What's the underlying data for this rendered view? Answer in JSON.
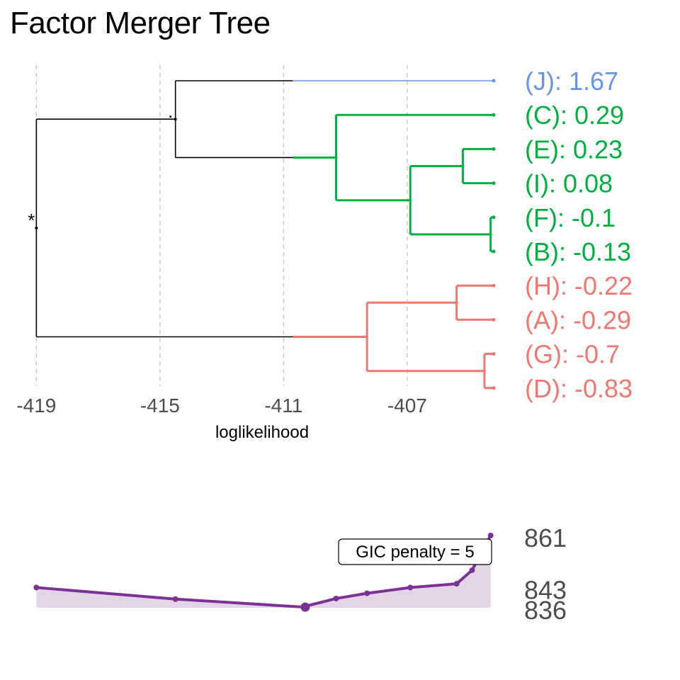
{
  "title": "Factor Merger Tree",
  "colors": {
    "black": "#000000",
    "blue": "#6495ED",
    "green": "#00B140",
    "red": "#F07870",
    "purple": "#7B3294",
    "purple_fill": "#E4D4E8",
    "grid": "#C8C8C8",
    "axis_text": "#4D4D4D"
  },
  "chart_data": [
    {
      "type": "dendrogram",
      "xlabel": "loglikelihood",
      "xlim": [
        -419.1,
        -404.2
      ],
      "x_ticks": [
        -419,
        -415,
        -411,
        -407
      ],
      "x_tick_labels": [
        "-419",
        "-415",
        "-411",
        "-407"
      ],
      "grid": true,
      "leaf_x": -404.2,
      "leaves": [
        {
          "id": "J",
          "label": "(J): 1.67",
          "color": "blue"
        },
        {
          "id": "C",
          "label": "(C): 0.29",
          "color": "green"
        },
        {
          "id": "E",
          "label": "(E): 0.23",
          "color": "green"
        },
        {
          "id": "I",
          "label": "(I): 0.08",
          "color": "green"
        },
        {
          "id": "F",
          "label": "(F): -0.1",
          "color": "green"
        },
        {
          "id": "B",
          "label": "(B): -0.13",
          "color": "green"
        },
        {
          "id": "H",
          "label": "(H): -0.22",
          "color": "red"
        },
        {
          "id": "A",
          "label": "(A): -0.29",
          "color": "red"
        },
        {
          "id": "G",
          "label": "(G): -0.7",
          "color": "red"
        },
        {
          "id": "D",
          "label": "(D): -0.83",
          "color": "red"
        }
      ],
      "merges": [
        {
          "id": "FB",
          "children": [
            "F",
            "B"
          ],
          "x": -404.3,
          "color": "green"
        },
        {
          "id": "EI",
          "children": [
            "E",
            "I"
          ],
          "x": -405.2,
          "color": "green"
        },
        {
          "id": "EIFB",
          "children": [
            "EI",
            "FB"
          ],
          "x": -406.9,
          "color": "green"
        },
        {
          "id": "CEIFB",
          "children": [
            "C",
            "EIFB"
          ],
          "x": -409.3,
          "color": "green"
        },
        {
          "id": "HA",
          "children": [
            "H",
            "A"
          ],
          "x": -405.4,
          "color": "red"
        },
        {
          "id": "GD",
          "children": [
            "G",
            "D"
          ],
          "x": -404.5,
          "color": "red"
        },
        {
          "id": "HAGD",
          "children": [
            "HA",
            "GD"
          ],
          "x": -408.3,
          "color": "red"
        },
        {
          "id": "JCEIFB",
          "children": [
            "J",
            "CEIFB"
          ],
          "x": -414.5,
          "color": "black",
          "annotation": "."
        },
        {
          "id": "ALL",
          "children": [
            "JCEIFB",
            "HAGD"
          ],
          "x": -419.0,
          "color": "black",
          "annotation": "*"
        }
      ],
      "colored_from_x": -410.7
    },
    {
      "type": "area",
      "x": [
        -419.0,
        -414.5,
        -410.3,
        -410.3,
        -409.3,
        -408.3,
        -406.9,
        -405.4,
        -404.9,
        -404.5,
        -404.3
      ],
      "y": [
        843,
        839,
        836.2,
        836.5,
        839.2,
        841,
        843,
        844.3,
        849,
        857,
        861
      ],
      "highlight_point": {
        "x": -410.3,
        "y": 836.2
      },
      "y_labels": [
        "861",
        "843",
        "836"
      ],
      "y_label_values": [
        861,
        843,
        836
      ],
      "ylim": [
        836,
        861
      ],
      "annotation": "GIC penalty = 5"
    }
  ]
}
